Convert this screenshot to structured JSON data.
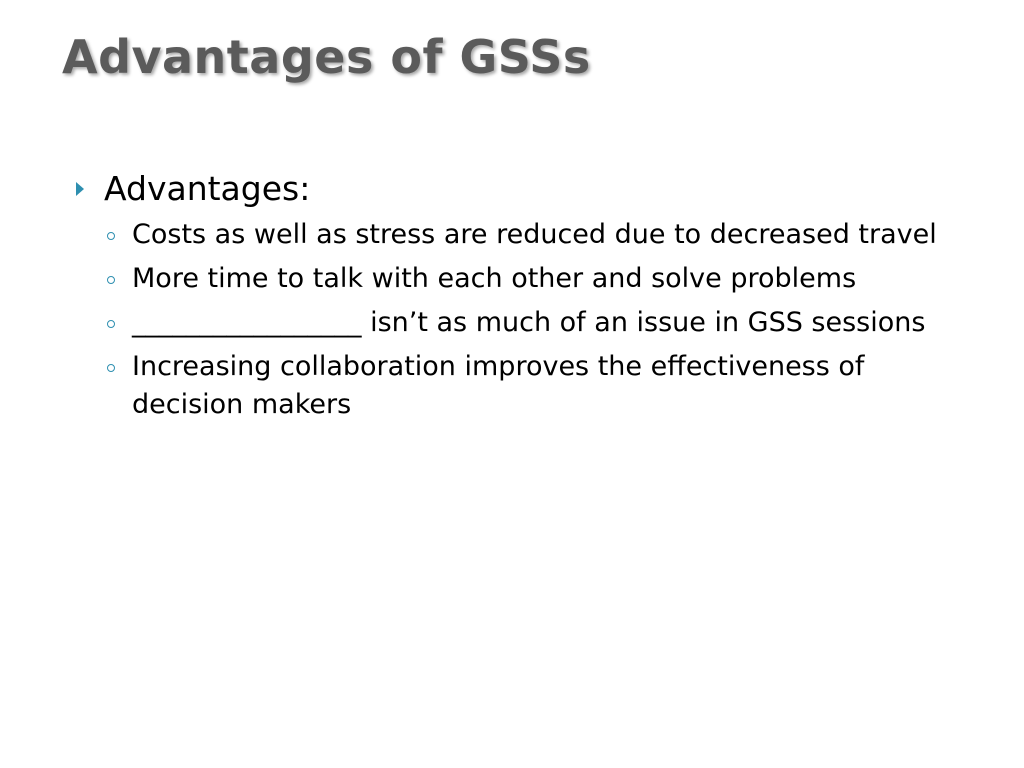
{
  "slide": {
    "title": "Advantages of GSSs",
    "accent_color": "#2e8fb0",
    "title_color": "#5b5b5b"
  },
  "content": {
    "heading": "Advantages:",
    "heading_marker_icon": "triangle-right-icon",
    "bullet_marker_icon": "ring-bullet-icon",
    "bullets": [
      "Costs as well as stress are reduced due to decreased travel",
      "More time to talk with each other and solve problems",
      "_________________ isn’t as much of an issue in GSS sessions",
      "Increasing collaboration improves the effectiveness of decision makers"
    ]
  }
}
